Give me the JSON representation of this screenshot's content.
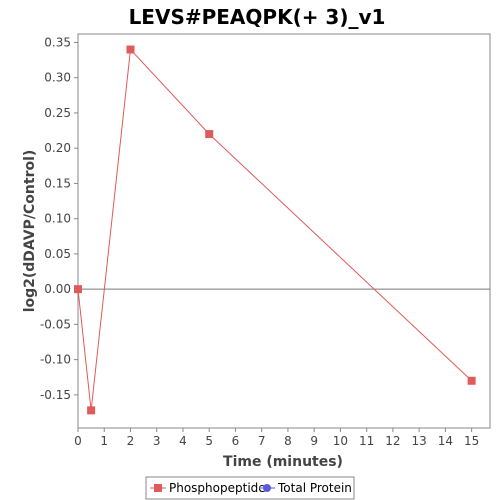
{
  "chart_data": {
    "type": "line",
    "title": "LEVS#PEAQPK(+ 3)_v1",
    "xlabel": "Time (minutes)",
    "ylabel": "log2(dDAVP/Control)",
    "xlim": [
      0,
      15.7
    ],
    "ylim": [
      -0.197,
      0.362
    ],
    "xticks": [
      0,
      1,
      2,
      3,
      4,
      5,
      6,
      7,
      8,
      9,
      10,
      11,
      12,
      13,
      14,
      15
    ],
    "yticks": [
      -0.15,
      -0.1,
      -0.05,
      0.0,
      0.05,
      0.1,
      0.15,
      0.2,
      0.25,
      0.3,
      0.35
    ],
    "ytick_labels": [
      "-0.15",
      "-0.10",
      "-0.05",
      "0.00",
      "0.05",
      "0.10",
      "0.15",
      "0.20",
      "0.25",
      "0.30",
      "0.35"
    ],
    "zero_line": true,
    "grid": false,
    "legend_position": "bottom",
    "series": [
      {
        "name": "Phosphopeptide",
        "color": "#e05a5a",
        "marker": "square",
        "x": [
          0,
          0.5,
          2,
          5,
          15
        ],
        "y": [
          0.0,
          -0.172,
          0.34,
          0.22,
          -0.13
        ]
      },
      {
        "name": "Total Protein",
        "color": "#5a5ae0",
        "marker": "circle",
        "x": [],
        "y": []
      }
    ]
  }
}
